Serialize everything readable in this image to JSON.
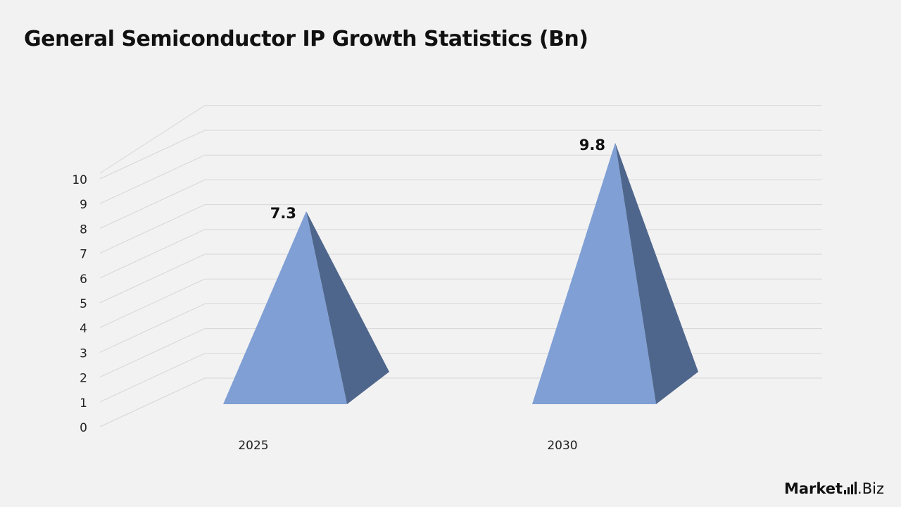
{
  "title": "General Semiconductor IP Growth Statistics (Bn)",
  "logo": {
    "main": "Market",
    "suffix": ".Biz"
  },
  "colors": {
    "front": "#7f9fd5",
    "side": "#4f668c",
    "grid": "#d6d6d6",
    "text": "#111111"
  },
  "chart_data": {
    "type": "bar",
    "style": "3d-pyramid",
    "categories": [
      "2025",
      "2030"
    ],
    "values": [
      7.3,
      9.8
    ],
    "data_labels": [
      "7.3",
      "9.8"
    ],
    "ylim": [
      0,
      10
    ],
    "yticks": [
      "0",
      "1",
      "2",
      "3",
      "4",
      "5",
      "6",
      "7",
      "8",
      "9",
      "10"
    ],
    "grid": true,
    "legend": "none"
  }
}
